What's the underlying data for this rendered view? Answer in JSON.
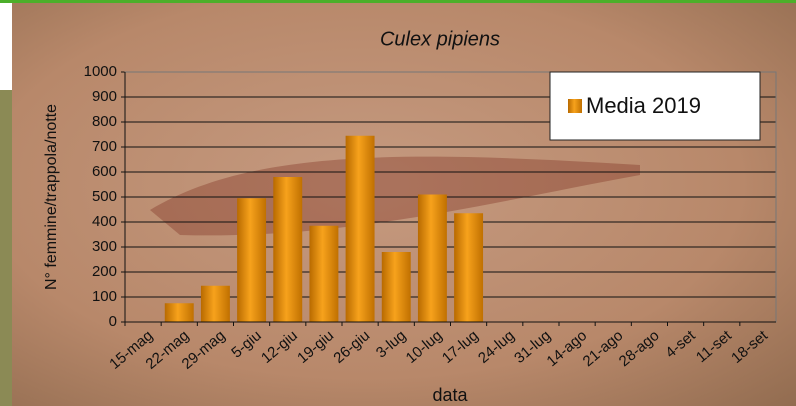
{
  "chart_data": {
    "type": "bar",
    "title": "Culex pipiens",
    "x_label": "data",
    "y_label": "N° femmine/trappola/notte",
    "categories": [
      "15-mag",
      "22-mag",
      "29-mag",
      "5-giu",
      "12-giu",
      "19-giu",
      "26-giu",
      "3-lug",
      "10-lug",
      "17-lug",
      "24-lug",
      "31-lug",
      "14-ago",
      "21-ago",
      "28-ago",
      "4-set",
      "11-set",
      "18-set"
    ],
    "series": [
      {
        "name": "Media 2019",
        "color": "#e58a00",
        "values": [
          null,
          75,
          145,
          495,
          580,
          385,
          745,
          280,
          510,
          435,
          null,
          null,
          null,
          null,
          null,
          null,
          null,
          null
        ]
      }
    ],
    "ylim": [
      0,
      1000
    ],
    "yticks": [
      0,
      100,
      200,
      300,
      400,
      500,
      600,
      700,
      800,
      900,
      1000
    ],
    "grid": true,
    "legend": "upper right"
  }
}
